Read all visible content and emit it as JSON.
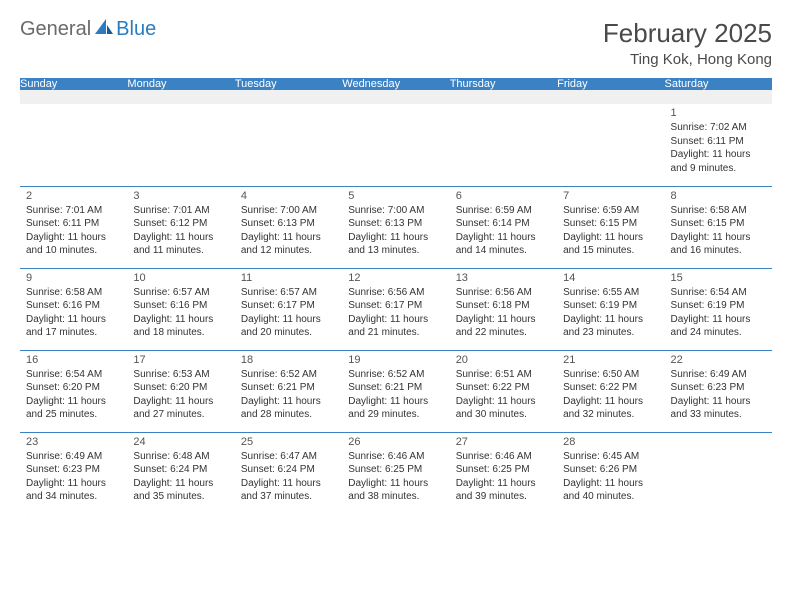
{
  "brand": {
    "part1": "General",
    "part2": "Blue"
  },
  "title": "February 2025",
  "location": "Ting Kok, Hong Kong",
  "colors": {
    "header_bg": "#3b82c4",
    "header_text": "#ffffff",
    "border": "#3b82c4",
    "spacer_bg": "#f0f0f0",
    "body_text": "#333333",
    "logo_gray": "#6a6a6a",
    "logo_blue": "#2a7bbf"
  },
  "dayNames": [
    "Sunday",
    "Monday",
    "Tuesday",
    "Wednesday",
    "Thursday",
    "Friday",
    "Saturday"
  ],
  "weeks": [
    [
      null,
      null,
      null,
      null,
      null,
      null,
      {
        "n": "1",
        "sr": "Sunrise: 7:02 AM",
        "ss": "Sunset: 6:11 PM",
        "dl1": "Daylight: 11 hours",
        "dl2": "and 9 minutes."
      }
    ],
    [
      {
        "n": "2",
        "sr": "Sunrise: 7:01 AM",
        "ss": "Sunset: 6:11 PM",
        "dl1": "Daylight: 11 hours",
        "dl2": "and 10 minutes."
      },
      {
        "n": "3",
        "sr": "Sunrise: 7:01 AM",
        "ss": "Sunset: 6:12 PM",
        "dl1": "Daylight: 11 hours",
        "dl2": "and 11 minutes."
      },
      {
        "n": "4",
        "sr": "Sunrise: 7:00 AM",
        "ss": "Sunset: 6:13 PM",
        "dl1": "Daylight: 11 hours",
        "dl2": "and 12 minutes."
      },
      {
        "n": "5",
        "sr": "Sunrise: 7:00 AM",
        "ss": "Sunset: 6:13 PM",
        "dl1": "Daylight: 11 hours",
        "dl2": "and 13 minutes."
      },
      {
        "n": "6",
        "sr": "Sunrise: 6:59 AM",
        "ss": "Sunset: 6:14 PM",
        "dl1": "Daylight: 11 hours",
        "dl2": "and 14 minutes."
      },
      {
        "n": "7",
        "sr": "Sunrise: 6:59 AM",
        "ss": "Sunset: 6:15 PM",
        "dl1": "Daylight: 11 hours",
        "dl2": "and 15 minutes."
      },
      {
        "n": "8",
        "sr": "Sunrise: 6:58 AM",
        "ss": "Sunset: 6:15 PM",
        "dl1": "Daylight: 11 hours",
        "dl2": "and 16 minutes."
      }
    ],
    [
      {
        "n": "9",
        "sr": "Sunrise: 6:58 AM",
        "ss": "Sunset: 6:16 PM",
        "dl1": "Daylight: 11 hours",
        "dl2": "and 17 minutes."
      },
      {
        "n": "10",
        "sr": "Sunrise: 6:57 AM",
        "ss": "Sunset: 6:16 PM",
        "dl1": "Daylight: 11 hours",
        "dl2": "and 18 minutes."
      },
      {
        "n": "11",
        "sr": "Sunrise: 6:57 AM",
        "ss": "Sunset: 6:17 PM",
        "dl1": "Daylight: 11 hours",
        "dl2": "and 20 minutes."
      },
      {
        "n": "12",
        "sr": "Sunrise: 6:56 AM",
        "ss": "Sunset: 6:17 PM",
        "dl1": "Daylight: 11 hours",
        "dl2": "and 21 minutes."
      },
      {
        "n": "13",
        "sr": "Sunrise: 6:56 AM",
        "ss": "Sunset: 6:18 PM",
        "dl1": "Daylight: 11 hours",
        "dl2": "and 22 minutes."
      },
      {
        "n": "14",
        "sr": "Sunrise: 6:55 AM",
        "ss": "Sunset: 6:19 PM",
        "dl1": "Daylight: 11 hours",
        "dl2": "and 23 minutes."
      },
      {
        "n": "15",
        "sr": "Sunrise: 6:54 AM",
        "ss": "Sunset: 6:19 PM",
        "dl1": "Daylight: 11 hours",
        "dl2": "and 24 minutes."
      }
    ],
    [
      {
        "n": "16",
        "sr": "Sunrise: 6:54 AM",
        "ss": "Sunset: 6:20 PM",
        "dl1": "Daylight: 11 hours",
        "dl2": "and 25 minutes."
      },
      {
        "n": "17",
        "sr": "Sunrise: 6:53 AM",
        "ss": "Sunset: 6:20 PM",
        "dl1": "Daylight: 11 hours",
        "dl2": "and 27 minutes."
      },
      {
        "n": "18",
        "sr": "Sunrise: 6:52 AM",
        "ss": "Sunset: 6:21 PM",
        "dl1": "Daylight: 11 hours",
        "dl2": "and 28 minutes."
      },
      {
        "n": "19",
        "sr": "Sunrise: 6:52 AM",
        "ss": "Sunset: 6:21 PM",
        "dl1": "Daylight: 11 hours",
        "dl2": "and 29 minutes."
      },
      {
        "n": "20",
        "sr": "Sunrise: 6:51 AM",
        "ss": "Sunset: 6:22 PM",
        "dl1": "Daylight: 11 hours",
        "dl2": "and 30 minutes."
      },
      {
        "n": "21",
        "sr": "Sunrise: 6:50 AM",
        "ss": "Sunset: 6:22 PM",
        "dl1": "Daylight: 11 hours",
        "dl2": "and 32 minutes."
      },
      {
        "n": "22",
        "sr": "Sunrise: 6:49 AM",
        "ss": "Sunset: 6:23 PM",
        "dl1": "Daylight: 11 hours",
        "dl2": "and 33 minutes."
      }
    ],
    [
      {
        "n": "23",
        "sr": "Sunrise: 6:49 AM",
        "ss": "Sunset: 6:23 PM",
        "dl1": "Daylight: 11 hours",
        "dl2": "and 34 minutes."
      },
      {
        "n": "24",
        "sr": "Sunrise: 6:48 AM",
        "ss": "Sunset: 6:24 PM",
        "dl1": "Daylight: 11 hours",
        "dl2": "and 35 minutes."
      },
      {
        "n": "25",
        "sr": "Sunrise: 6:47 AM",
        "ss": "Sunset: 6:24 PM",
        "dl1": "Daylight: 11 hours",
        "dl2": "and 37 minutes."
      },
      {
        "n": "26",
        "sr": "Sunrise: 6:46 AM",
        "ss": "Sunset: 6:25 PM",
        "dl1": "Daylight: 11 hours",
        "dl2": "and 38 minutes."
      },
      {
        "n": "27",
        "sr": "Sunrise: 6:46 AM",
        "ss": "Sunset: 6:25 PM",
        "dl1": "Daylight: 11 hours",
        "dl2": "and 39 minutes."
      },
      {
        "n": "28",
        "sr": "Sunrise: 6:45 AM",
        "ss": "Sunset: 6:26 PM",
        "dl1": "Daylight: 11 hours",
        "dl2": "and 40 minutes."
      },
      null
    ]
  ]
}
